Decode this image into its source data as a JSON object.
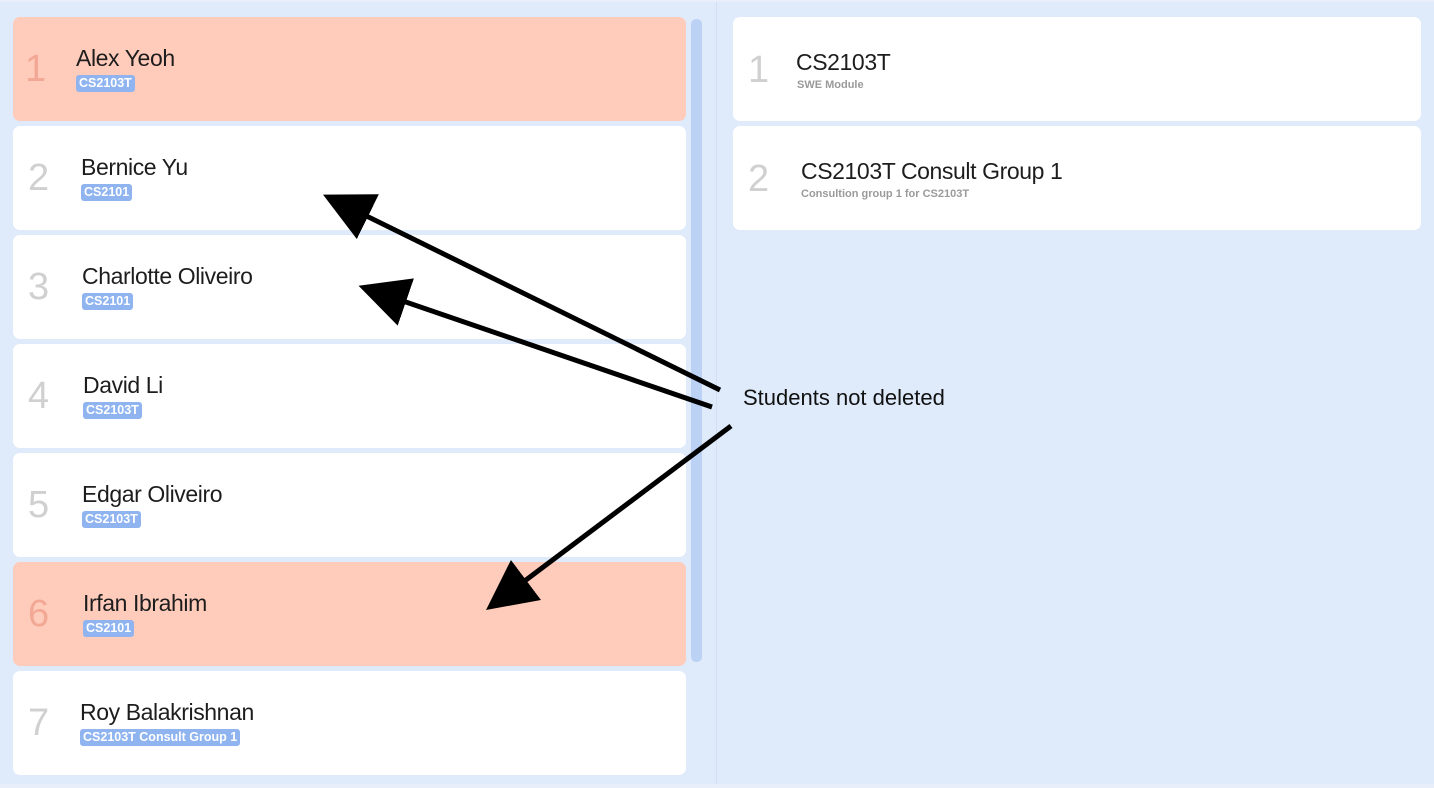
{
  "students": [
    {
      "index": "1",
      "name": "Alex Yeoh",
      "tag": "CS2103T",
      "highlight": true
    },
    {
      "index": "2",
      "name": "Bernice Yu",
      "tag": "CS2101",
      "highlight": false
    },
    {
      "index": "3",
      "name": "Charlotte Oliveiro",
      "tag": "CS2101",
      "highlight": false
    },
    {
      "index": "4",
      "name": "David Li",
      "tag": "CS2103T",
      "highlight": false
    },
    {
      "index": "5",
      "name": "Edgar Oliveiro",
      "tag": "CS2103T",
      "highlight": false
    },
    {
      "index": "6",
      "name": "Irfan Ibrahim",
      "tag": "CS2101",
      "highlight": true
    },
    {
      "index": "7",
      "name": "Roy Balakrishnan",
      "tag": "CS2103T Consult Group 1",
      "highlight": false
    }
  ],
  "groups": [
    {
      "index": "1",
      "name": "CS2103T",
      "description": "SWE Module"
    },
    {
      "index": "2",
      "name": "CS2103T Consult Group 1",
      "description": "Consultion group 1 for CS2103T"
    }
  ],
  "annotation": {
    "text": "Students not deleted",
    "color": "#000000"
  },
  "colors": {
    "background": "#dfeafb",
    "highlight_card": "#ffccbb",
    "tag": "#8fb4f0",
    "scrollbar": "#bcd2f5"
  }
}
